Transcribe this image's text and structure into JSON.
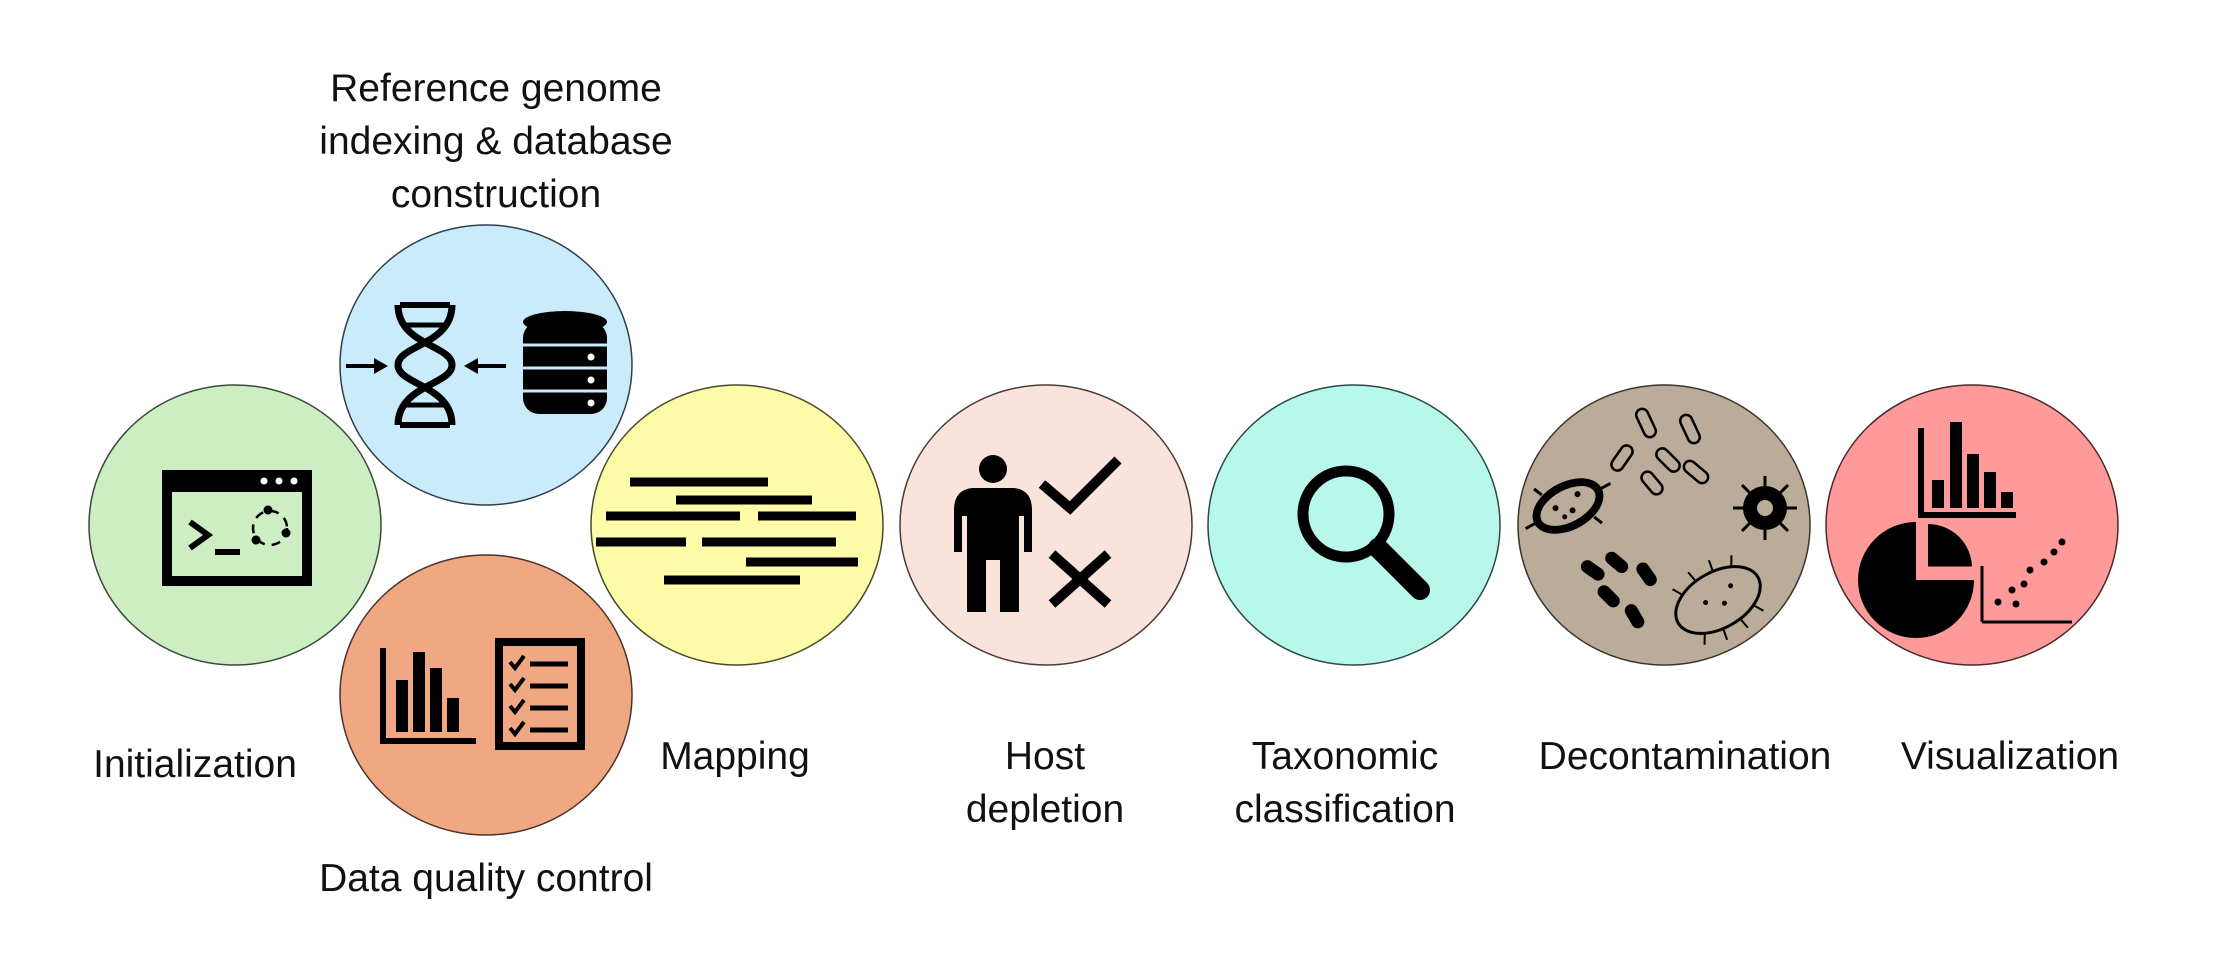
{
  "stages": [
    {
      "id": "init",
      "label": "Initialization",
      "color": "#cdeec2",
      "icon": "terminal-icon"
    },
    {
      "id": "ref",
      "label": "Reference genome\nindexing & database\nconstruction",
      "color": "#c9ebfb",
      "icon": "dna-database-icon"
    },
    {
      "id": "qc",
      "label": "Data quality control",
      "color": "#f0a882",
      "icon": "bar-chart-checklist-icon"
    },
    {
      "id": "map",
      "label": "Mapping",
      "color": "#fdfba8",
      "icon": "aligned-reads-icon"
    },
    {
      "id": "host",
      "label": "Host\ndepletion",
      "color": "#fae3da",
      "icon": "person-check-cross-icon"
    },
    {
      "id": "tax",
      "label": "Taxonomic\nclassification",
      "color": "#b7f8ea",
      "icon": "magnifier-icon"
    },
    {
      "id": "decon",
      "label": "Decontamination",
      "color": "#baac99",
      "icon": "microbes-icon"
    },
    {
      "id": "vis",
      "label": "Visualization",
      "color": "#fe9a9a",
      "icon": "charts-icon"
    }
  ]
}
